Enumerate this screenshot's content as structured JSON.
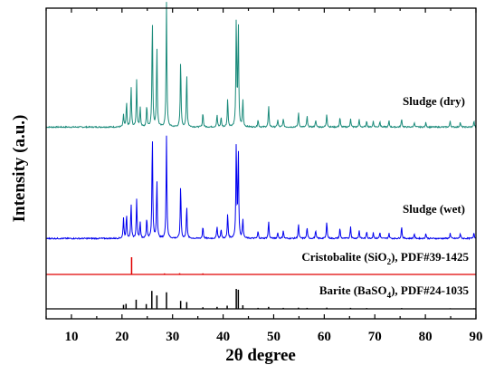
{
  "chart_data": {
    "type": "line",
    "xlabel": "2θ degree",
    "ylabel": "Intensity (a.u.)",
    "xlim": [
      5,
      90
    ],
    "xticks": [
      "10",
      "20",
      "30",
      "40",
      "50",
      "60",
      "70",
      "80",
      "90"
    ],
    "yticks": "none",
    "grid": false,
    "legend": "none",
    "series": [
      {
        "name": "Sludge (dry)",
        "color": "#1a8a7a",
        "style": "line",
        "peaks": [
          [
            20.3,
            0.1
          ],
          [
            20.9,
            0.2
          ],
          [
            21.8,
            0.33
          ],
          [
            22.9,
            0.38
          ],
          [
            23.6,
            0.16
          ],
          [
            24.9,
            0.18
          ],
          [
            26.0,
            0.88
          ],
          [
            26.9,
            0.65
          ],
          [
            28.8,
            1.0
          ],
          [
            31.6,
            0.54
          ],
          [
            32.8,
            0.44
          ],
          [
            36.0,
            0.12
          ],
          [
            38.8,
            0.1
          ],
          [
            39.6,
            0.08
          ],
          [
            40.9,
            0.23
          ],
          [
            42.6,
            0.86
          ],
          [
            43.0,
            0.85
          ],
          [
            43.9,
            0.22
          ],
          [
            46.9,
            0.06
          ],
          [
            49.0,
            0.17
          ],
          [
            50.8,
            0.06
          ],
          [
            51.9,
            0.07
          ],
          [
            54.9,
            0.12
          ],
          [
            56.6,
            0.09
          ],
          [
            58.3,
            0.06
          ],
          [
            60.5,
            0.11
          ],
          [
            63.1,
            0.08
          ],
          [
            65.2,
            0.07
          ],
          [
            66.9,
            0.06
          ],
          [
            68.4,
            0.05
          ],
          [
            69.7,
            0.05
          ],
          [
            71.0,
            0.05
          ],
          [
            72.8,
            0.05
          ],
          [
            75.3,
            0.07
          ],
          [
            77.8,
            0.04
          ],
          [
            80.1,
            0.04
          ],
          [
            84.9,
            0.05
          ],
          [
            86.9,
            0.04
          ],
          [
            89.6,
            0.05
          ]
        ]
      },
      {
        "name": "Sludge (wet)",
        "color": "#0000ee",
        "style": "line",
        "peaks": [
          [
            20.3,
            0.2
          ],
          [
            20.9,
            0.23
          ],
          [
            21.8,
            0.33
          ],
          [
            22.9,
            0.38
          ],
          [
            23.6,
            0.16
          ],
          [
            24.9,
            0.2
          ],
          [
            26.0,
            1.0
          ],
          [
            26.9,
            0.57
          ],
          [
            28.8,
            0.99
          ],
          [
            31.6,
            0.52
          ],
          [
            32.8,
            0.32
          ],
          [
            36.0,
            0.12
          ],
          [
            38.8,
            0.12
          ],
          [
            39.6,
            0.09
          ],
          [
            40.9,
            0.24
          ],
          [
            42.6,
            0.92
          ],
          [
            43.0,
            0.86
          ],
          [
            43.9,
            0.19
          ],
          [
            46.9,
            0.07
          ],
          [
            49.0,
            0.17
          ],
          [
            50.8,
            0.06
          ],
          [
            51.9,
            0.08
          ],
          [
            54.9,
            0.14
          ],
          [
            56.6,
            0.11
          ],
          [
            58.3,
            0.08
          ],
          [
            60.5,
            0.17
          ],
          [
            63.1,
            0.1
          ],
          [
            65.2,
            0.12
          ],
          [
            66.9,
            0.08
          ],
          [
            68.4,
            0.07
          ],
          [
            69.7,
            0.06
          ],
          [
            71.0,
            0.06
          ],
          [
            72.8,
            0.05
          ],
          [
            75.3,
            0.12
          ],
          [
            77.8,
            0.05
          ],
          [
            80.1,
            0.05
          ],
          [
            84.9,
            0.05
          ],
          [
            86.9,
            0.05
          ],
          [
            89.6,
            0.06
          ]
        ]
      },
      {
        "name": "Cristobalite (SiO2), PDF#39-1425",
        "color": "#e00000",
        "style": "stick",
        "peaks": [
          [
            21.9,
            1.0
          ],
          [
            28.4,
            0.06
          ],
          [
            31.4,
            0.07
          ],
          [
            36.0,
            0.06
          ]
        ]
      },
      {
        "name": "Barite (BaSO4), PDF#24-1035",
        "color": "#000000",
        "style": "stick",
        "peaks": [
          [
            20.3,
            0.2
          ],
          [
            20.8,
            0.25
          ],
          [
            22.8,
            0.46
          ],
          [
            24.8,
            0.24
          ],
          [
            25.9,
            0.9
          ],
          [
            26.9,
            0.67
          ],
          [
            28.8,
            0.83
          ],
          [
            31.6,
            0.4
          ],
          [
            32.8,
            0.34
          ],
          [
            36.0,
            0.08
          ],
          [
            38.8,
            0.1
          ],
          [
            40.8,
            0.16
          ],
          [
            42.6,
            1.0
          ],
          [
            43.0,
            0.96
          ],
          [
            43.9,
            0.18
          ],
          [
            46.9,
            0.05
          ],
          [
            49.0,
            0.1
          ],
          [
            51.9,
            0.05
          ],
          [
            54.9,
            0.06
          ],
          [
            56.6,
            0.05
          ],
          [
            60.5,
            0.06
          ],
          [
            65.2,
            0.05
          ],
          [
            68.4,
            0.04
          ],
          [
            75.3,
            0.04
          ],
          [
            84.9,
            0.03
          ],
          [
            89.6,
            0.03
          ]
        ]
      }
    ],
    "labels": {
      "dry": "Sludge (dry)",
      "wet": "Sludge (wet)",
      "cristobalite_pre": "Cristobalite (SiO",
      "cristobalite_sub": "2",
      "cristobalite_post": "), PDF#39-1425",
      "barite_pre": "Barite (BaSO",
      "barite_sub": "4",
      "barite_post": "), PDF#24-1035"
    }
  }
}
